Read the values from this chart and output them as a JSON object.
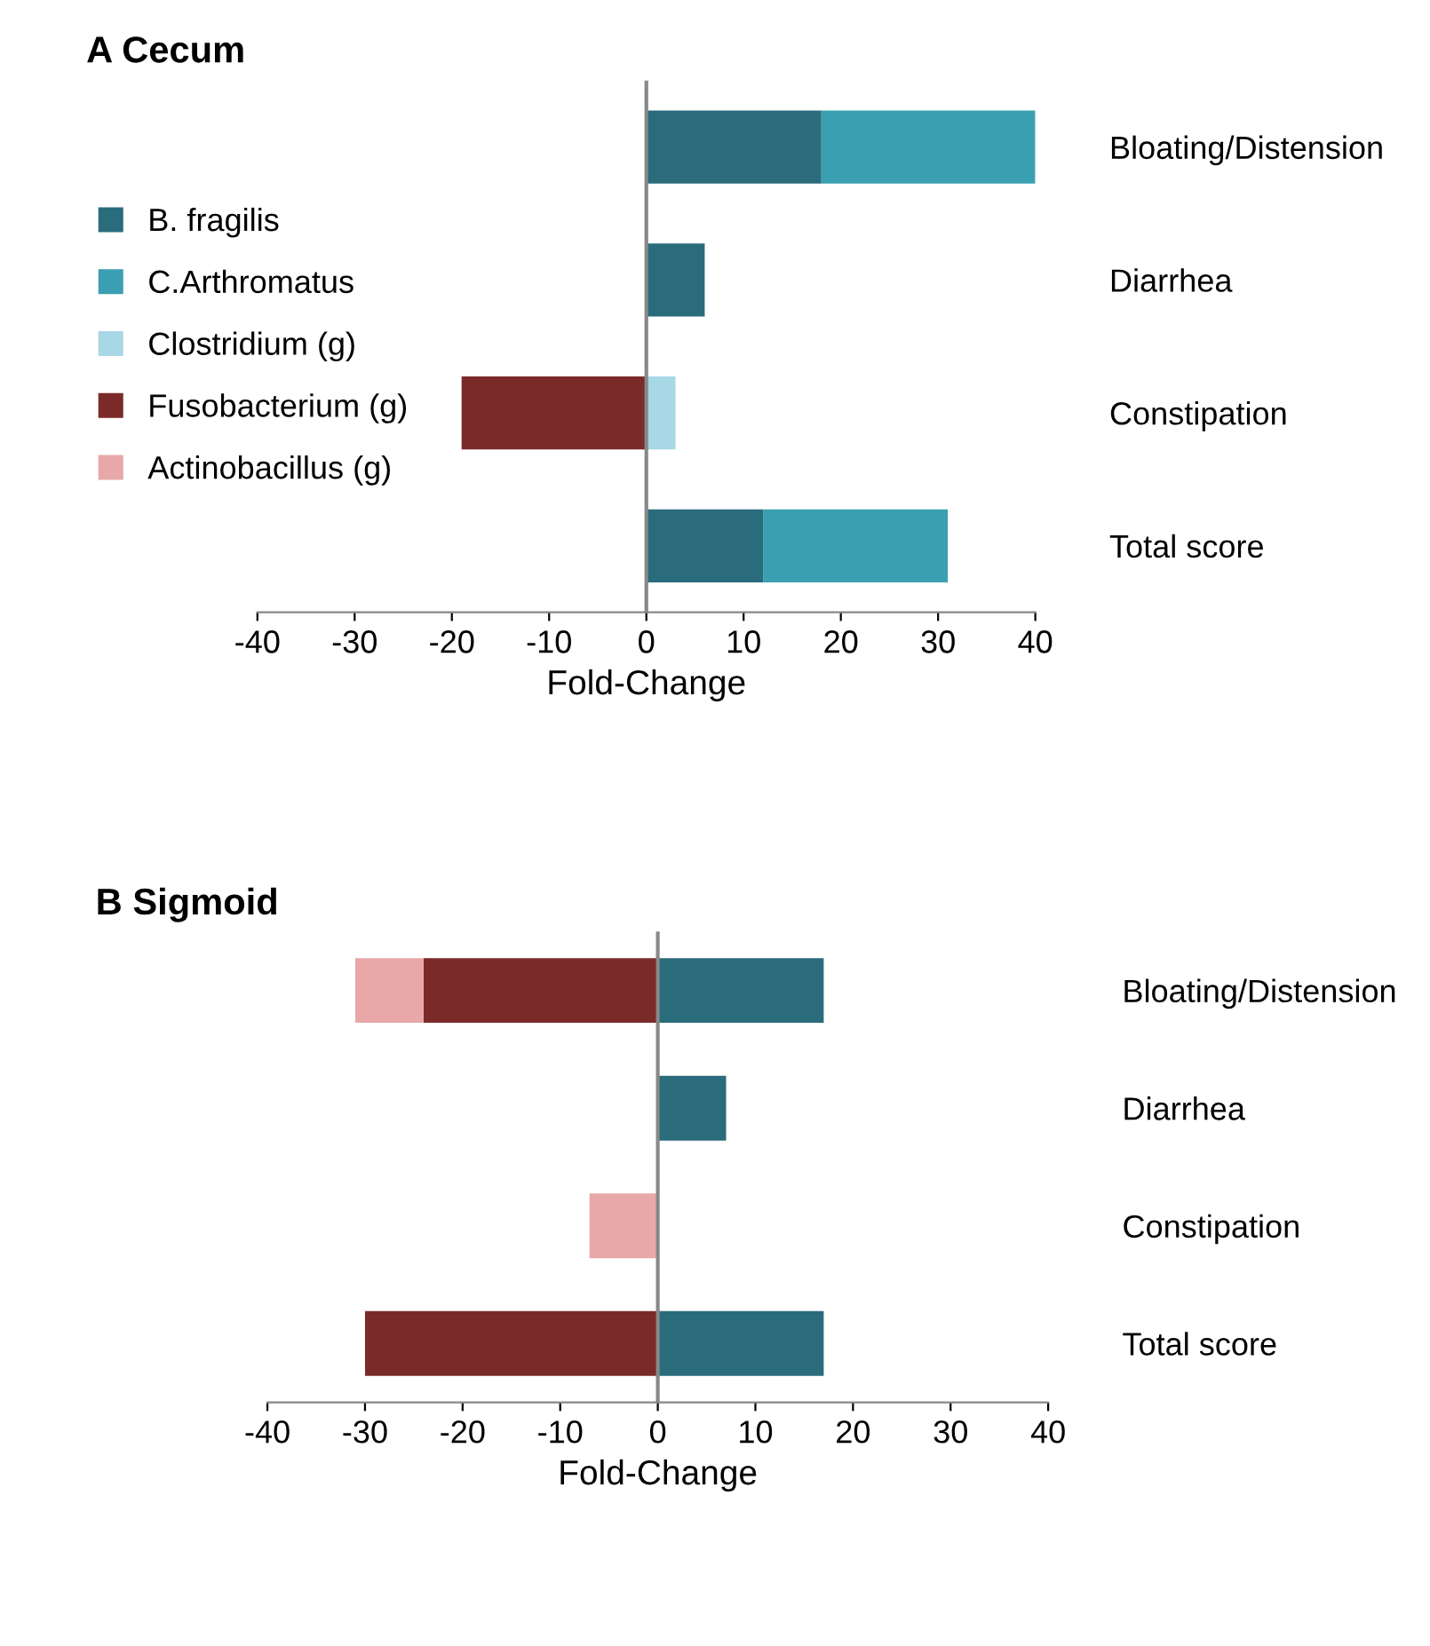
{
  "chart_data": [
    {
      "type": "bar",
      "title": "A Cecum",
      "orientation": "horizontal",
      "stacked": true,
      "categories": [
        "Bloating/Distension",
        "Diarrhea",
        "Constipation",
        "Total score"
      ],
      "xlabel": "Fold-Change",
      "xlim": [
        -40,
        40
      ],
      "xticks": [
        -40,
        -30,
        -20,
        -10,
        0,
        10,
        20,
        30,
        40
      ],
      "ref_lines": [
        {
          "axis": "x",
          "value": 0,
          "color": "#888888"
        }
      ],
      "legend": "left",
      "series": [
        {
          "name": "B. fragilis",
          "color": "#2a6b7c",
          "values": [
            18,
            6,
            null,
            12
          ]
        },
        {
          "name": "C.Arthromatus",
          "color": "#3a9fb0",
          "values": [
            22,
            null,
            null,
            19
          ]
        },
        {
          "name": "Clostridium (g)",
          "color": "#a8d8e6",
          "values": [
            null,
            null,
            3,
            null
          ]
        },
        {
          "name": "Fusobacterium (g)",
          "color": "#7b2a2a",
          "values": [
            null,
            null,
            -19,
            null
          ]
        },
        {
          "name": "Actinobacillus (g)",
          "color": "#e8a8a8",
          "values": [
            null,
            null,
            null,
            null
          ]
        }
      ]
    },
    {
      "type": "bar",
      "title": "B Sigmoid",
      "orientation": "horizontal",
      "stacked": true,
      "categories": [
        "Bloating/Distension",
        "Diarrhea",
        "Constipation",
        "Total score"
      ],
      "xlabel": "Fold-Change",
      "xlim": [
        -40,
        40
      ],
      "xticks": [
        -40,
        -30,
        -20,
        -10,
        0,
        10,
        20,
        30,
        40
      ],
      "ref_lines": [
        {
          "axis": "x",
          "value": 0,
          "color": "#888888"
        }
      ],
      "series": [
        {
          "color": "#2a6b7c",
          "values": [
            17,
            7,
            null,
            17
          ]
        },
        {
          "color": "#7b2a2a",
          "values": [
            -24,
            null,
            null,
            -30
          ]
        },
        {
          "color": "#e8a8a8",
          "values": [
            -7,
            null,
            -7,
            null
          ]
        }
      ]
    }
  ]
}
